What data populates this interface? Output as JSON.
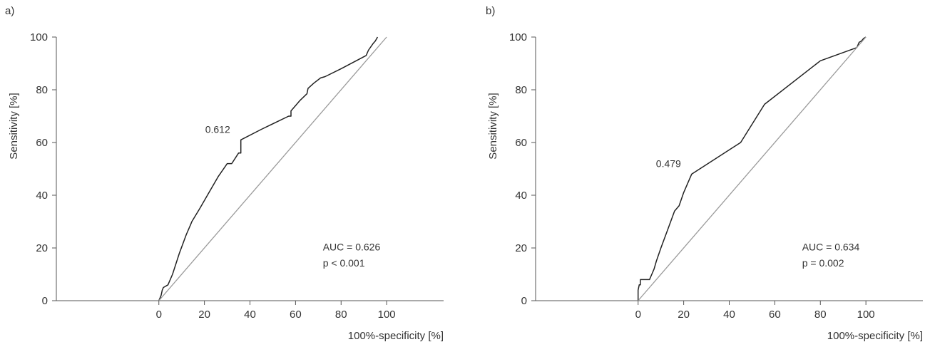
{
  "chart_data": [
    {
      "type": "line",
      "panel_label": "a)",
      "xlabel": "100%-specificity [%]",
      "ylabel": "Sensitivity [%]",
      "xlim": [
        -45,
        125
      ],
      "ylim": [
        0,
        100
      ],
      "xticks": [
        0,
        20,
        40,
        60,
        80,
        100
      ],
      "yticks": [
        0,
        20,
        40,
        60,
        80,
        100
      ],
      "grid": false,
      "cutoff_label": "0.612",
      "cutoff_point": [
        36,
        61
      ],
      "auc_text": "AUC = 0.626",
      "p_text": "p < 0.001",
      "series": [
        {
          "role": "roc",
          "x": [
            0,
            0.5,
            1,
            1.5,
            2,
            4,
            6,
            9,
            12,
            14,
            14.5,
            18,
            22,
            26,
            30,
            32,
            35,
            36,
            36,
            45,
            57,
            58,
            58,
            60,
            62,
            65,
            65.5,
            68,
            71,
            73,
            80,
            91,
            92,
            94,
            95,
            96
          ],
          "y": [
            0,
            1,
            2,
            4,
            5,
            6,
            10,
            18,
            25,
            29,
            30,
            35,
            41,
            47,
            52,
            52,
            56,
            56,
            61,
            65,
            70,
            70,
            72,
            74,
            76,
            78.5,
            80.5,
            82.5,
            84.5,
            85,
            88,
            93,
            95,
            97.5,
            98.5,
            100
          ]
        },
        {
          "role": "reference",
          "x": [
            0,
            100
          ],
          "y": [
            0,
            100
          ]
        }
      ]
    },
    {
      "type": "line",
      "panel_label": "b)",
      "xlabel": "100%-specificity [%]",
      "ylabel": "Sensitivity [%]",
      "xlim": [
        -45,
        125
      ],
      "ylim": [
        0,
        100
      ],
      "xticks": [
        0,
        20,
        40,
        60,
        80,
        100
      ],
      "yticks": [
        0,
        20,
        40,
        60,
        80,
        100
      ],
      "grid": false,
      "cutoff_label": "0.479",
      "cutoff_point": [
        23.5,
        48
      ],
      "auc_text": "AUC = 0.634",
      "p_text": "p = 0.002",
      "series": [
        {
          "role": "roc",
          "x": [
            0,
            0,
            0.5,
            1,
            1,
            2,
            3,
            5,
            6,
            7,
            8,
            10,
            13,
            16,
            18,
            20,
            23.5,
            45,
            55.5,
            80,
            96,
            97,
            98,
            99,
            100
          ],
          "y": [
            0,
            4,
            6,
            6,
            8,
            8,
            8,
            8,
            10,
            12,
            15,
            20,
            27,
            34,
            36,
            41,
            48,
            60,
            74.5,
            91,
            96,
            98,
            98.5,
            99.5,
            100
          ]
        },
        {
          "role": "reference",
          "x": [
            0,
            100
          ],
          "y": [
            0,
            100
          ]
        }
      ]
    }
  ]
}
